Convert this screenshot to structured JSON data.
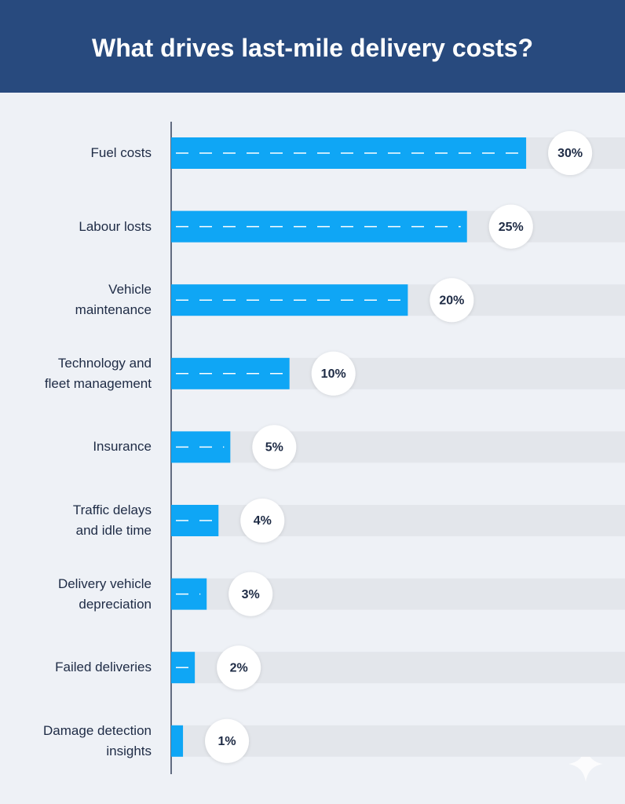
{
  "chart_data": {
    "type": "bar",
    "orientation": "horizontal",
    "title": "What drives last-mile delivery costs?",
    "categories": [
      "Fuel costs",
      "Labour losts",
      "Vehicle\nmaintenance",
      "Technology and\nfleet management",
      "Insurance",
      "Traffic delays\nand idle time",
      "Delivery vehicle\ndepreciation",
      "Failed deliveries",
      "Damage detection\ninsights"
    ],
    "values": [
      30,
      25,
      20,
      10,
      5,
      4,
      3,
      2,
      1
    ],
    "value_labels": [
      "30%",
      "25%",
      "20%",
      "10%",
      "5%",
      "4%",
      "3%",
      "2%",
      "1%"
    ],
    "color": "#0fa6f5"
  }
}
